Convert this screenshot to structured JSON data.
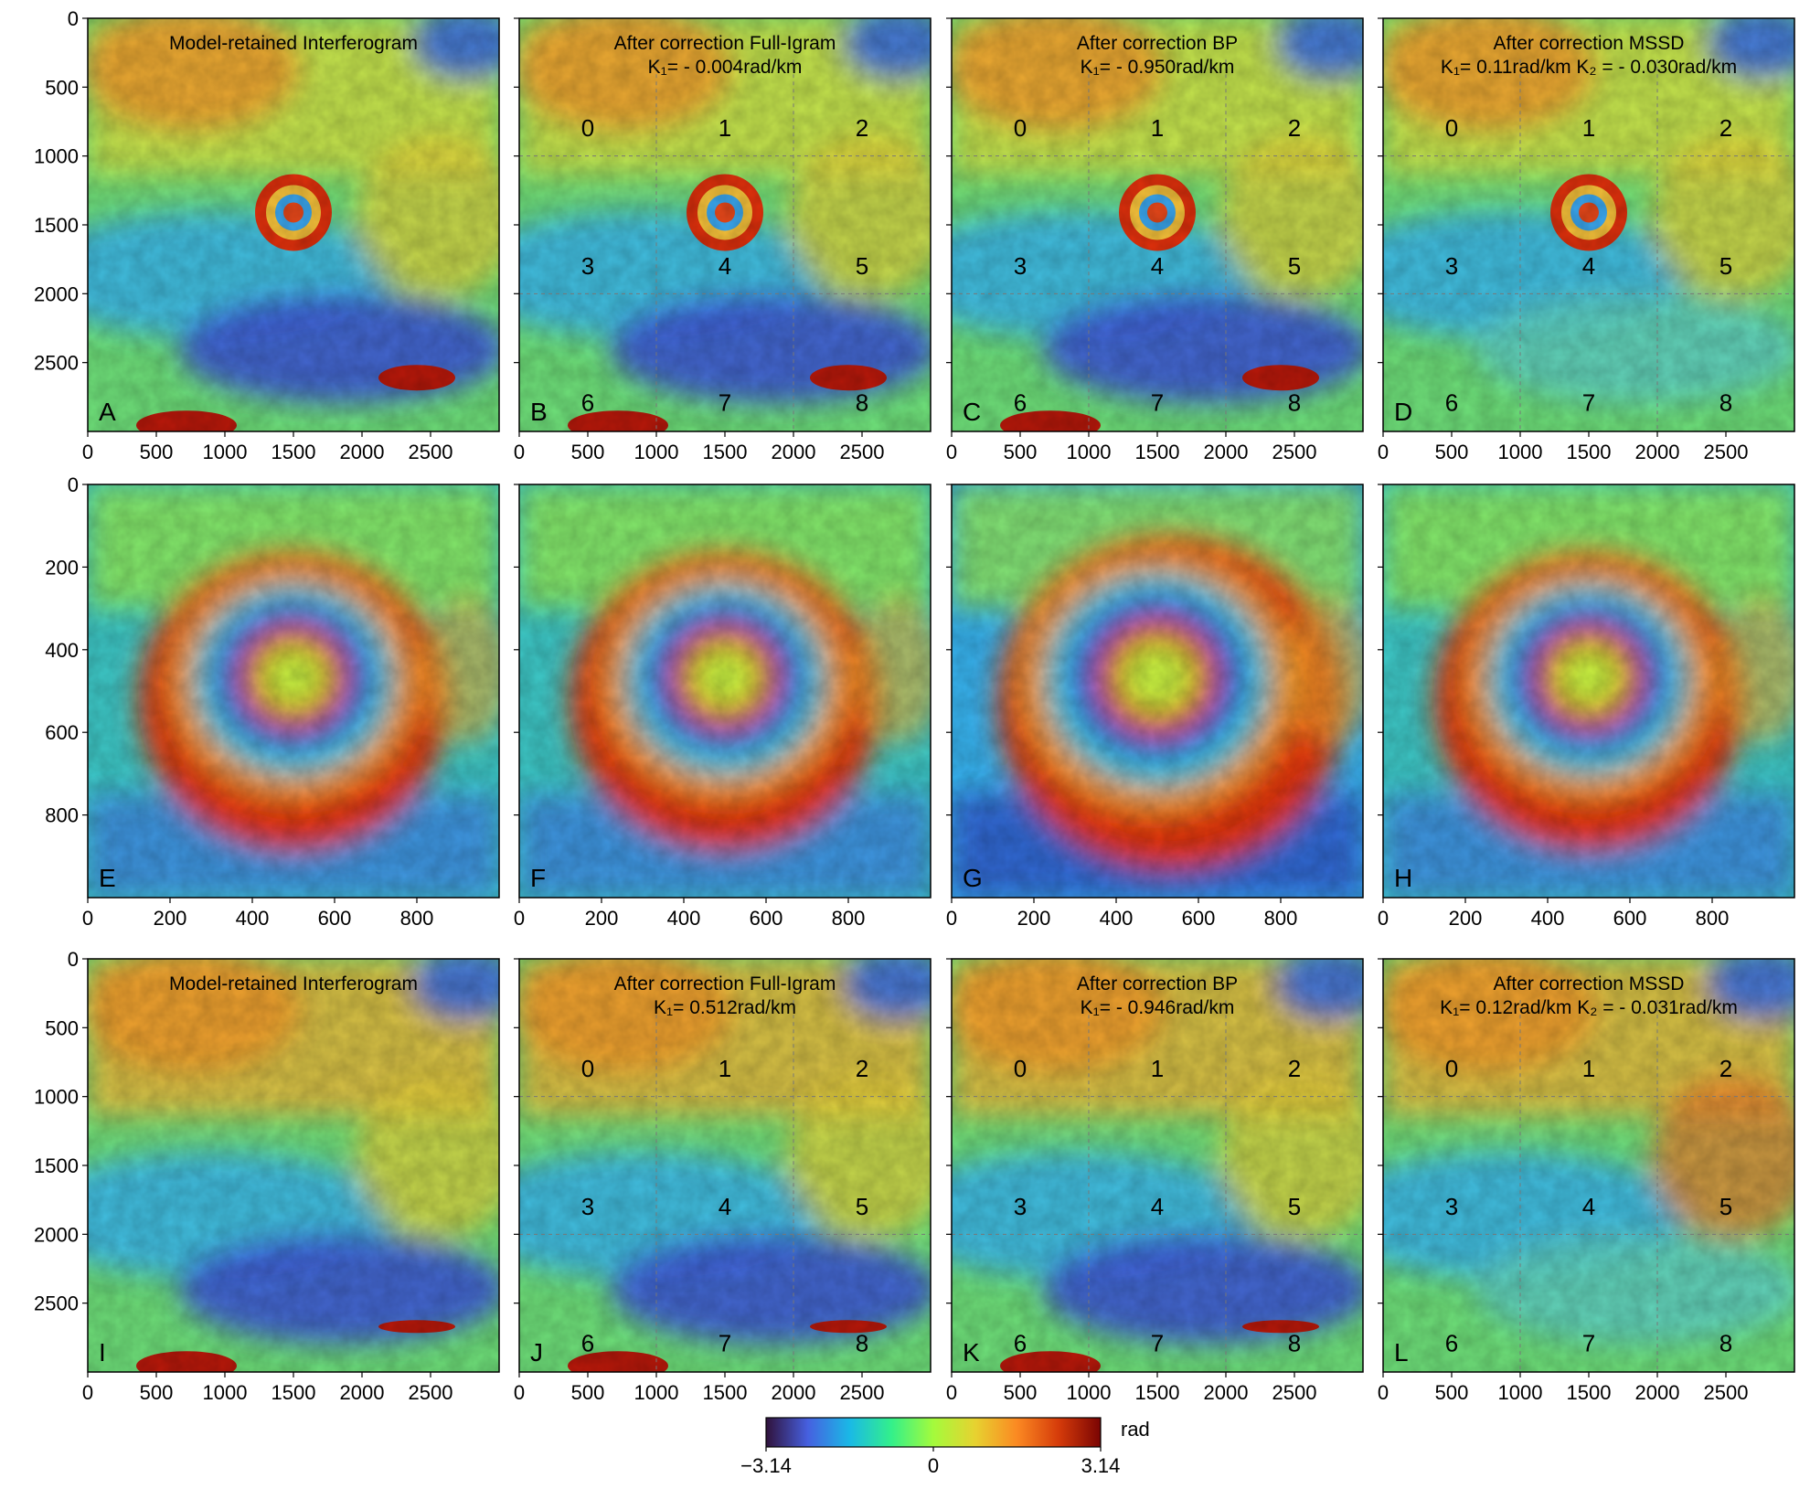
{
  "colorbar": {
    "ticks": [
      "−3.14",
      "0",
      "3.14"
    ],
    "unit": "rad",
    "colors": [
      "#30123b",
      "#4660e0",
      "#1ab9e6",
      "#33f08a",
      "#a4fb3c",
      "#e7d230",
      "#fb8922",
      "#d53b0a",
      "#7a0403"
    ]
  },
  "rows": [
    {
      "y_ticks": [
        "0",
        "500",
        "1000",
        "1500",
        "2000",
        "2500"
      ],
      "x_ticks": [
        "0",
        "500",
        "1000",
        "1500",
        "2000",
        "2500"
      ],
      "extent": 3000,
      "panels": [
        {
          "label": "A",
          "title1": "Model-retained Interferogram",
          "title2": ""
        },
        {
          "label": "B",
          "title1": "After correction Full-Igram",
          "title2": "K₁= - 0.004rad/km"
        },
        {
          "label": "C",
          "title1": "After correction BP",
          "title2": "K₁= - 0.950rad/km"
        },
        {
          "label": "D",
          "title1": "After correction MSSD",
          "title2": "K₁= 0.11rad/km  K₂ = - 0.030rad/km"
        }
      ]
    },
    {
      "y_ticks": [
        "0",
        "200",
        "400",
        "600",
        "800"
      ],
      "x_ticks": [
        "0",
        "200",
        "400",
        "600",
        "800"
      ],
      "extent": 1000,
      "panels": [
        {
          "label": "E",
          "title1": "",
          "title2": ""
        },
        {
          "label": "F",
          "title1": "",
          "title2": ""
        },
        {
          "label": "G",
          "title1": "",
          "title2": ""
        },
        {
          "label": "H",
          "title1": "",
          "title2": ""
        }
      ]
    },
    {
      "y_ticks": [
        "0",
        "500",
        "1000",
        "1500",
        "2000",
        "2500"
      ],
      "x_ticks": [
        "0",
        "500",
        "1000",
        "1500",
        "2000",
        "2500"
      ],
      "extent": 3000,
      "panels": [
        {
          "label": "I",
          "title1": "Model-retained Interferogram",
          "title2": ""
        },
        {
          "label": "J",
          "title1": "After correction Full-Igram",
          "title2": "K₁= 0.512rad/km"
        },
        {
          "label": "K",
          "title1": "After correction BP",
          "title2": "K₁= - 0.946rad/km"
        },
        {
          "label": "L",
          "title1": "After correction MSSD",
          "title2": "K₁= 0.12rad/km  K₂ = - 0.031rad/km"
        }
      ]
    }
  ],
  "region_labels": [
    "0",
    "1",
    "2",
    "3",
    "4",
    "5",
    "6",
    "7",
    "8"
  ],
  "chart_data": {
    "type": "heatmap",
    "description_units": "rad",
    "value_range": [
      -3.14,
      3.14
    ],
    "rows": 3,
    "cols": 4
  }
}
